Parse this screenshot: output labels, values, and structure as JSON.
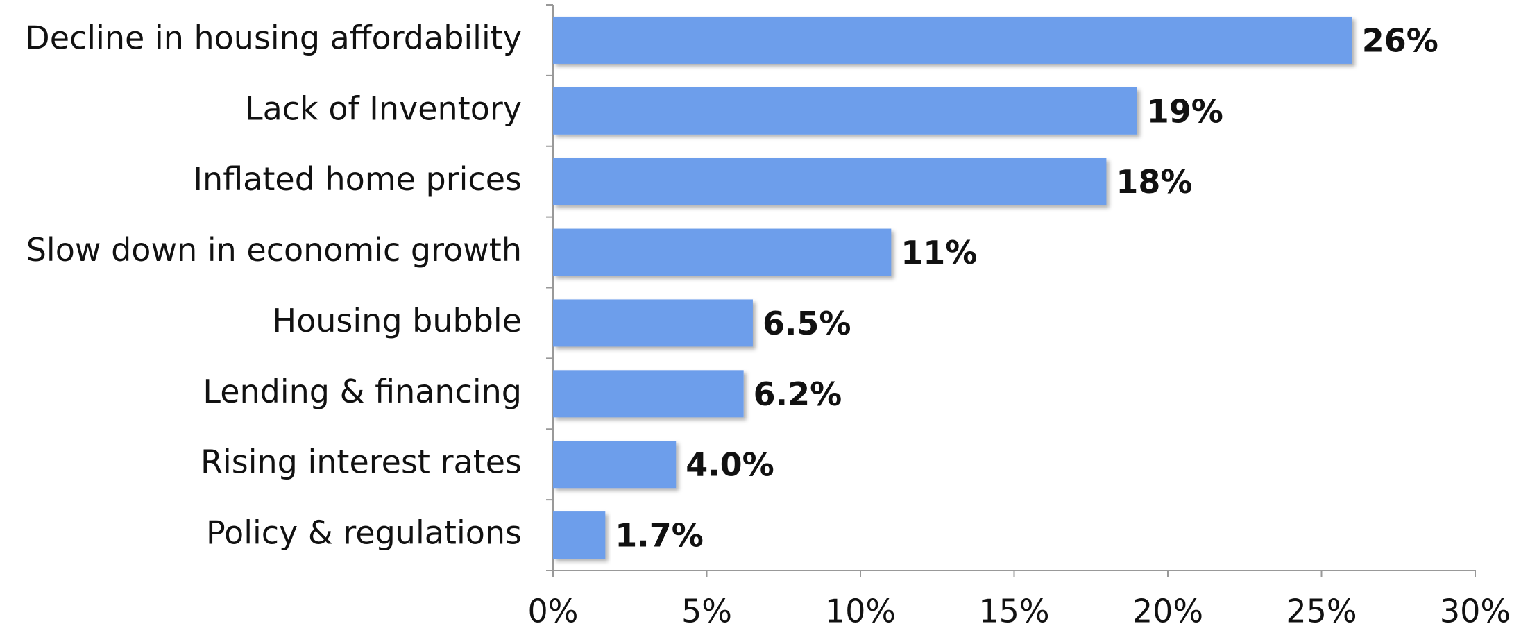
{
  "chart_data": {
    "type": "hbar",
    "categories": [
      "Decline in housing affordability",
      "Lack of Inventory",
      "Inflated home prices",
      "Slow down in economic growth",
      "Housing bubble",
      "Lending & financing",
      "Rising interest rates",
      "Policy & regulations"
    ],
    "values": [
      26,
      19,
      18,
      11,
      6.5,
      6.2,
      4.0,
      1.7
    ],
    "value_labels": [
      "26%",
      "19%",
      "18%",
      "11%",
      "6.5%",
      "6.2%",
      "4.0%",
      "1.7%"
    ],
    "color": "#6d9eeb",
    "xlim": [
      0,
      30
    ],
    "xticks": [
      {
        "value": 0,
        "label": "0%"
      },
      {
        "value": 5,
        "label": "5%"
      },
      {
        "value": 10,
        "label": "10%"
      },
      {
        "value": 15,
        "label": "15%"
      },
      {
        "value": 20,
        "label": "20%"
      },
      {
        "value": 25,
        "label": "25%"
      },
      {
        "value": 30,
        "label": "30%"
      }
    ]
  }
}
